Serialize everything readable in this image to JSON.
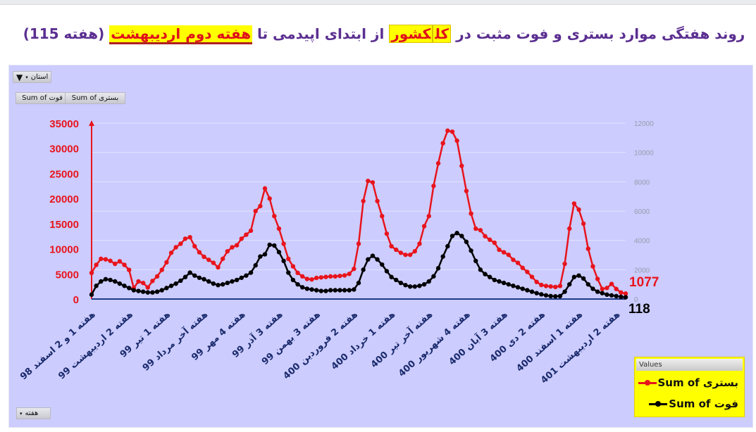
{
  "title": {
    "segments": [
      {
        "text": "روند هفتگی موارد بستری و فوت مثبت در ",
        "style": "plain"
      },
      {
        "text": "کل",
        "style": "highlight"
      },
      {
        "text": "کشور",
        "style": "highlight"
      },
      {
        "text": " از ابتدای اپیدمی تا ",
        "style": "plain"
      },
      {
        "text": "هفته دوم اردیبهشت",
        "style": "highlight-underline"
      },
      {
        "text": " (هفته 115)",
        "style": "plain"
      }
    ]
  },
  "controls": {
    "province_filter": "استان",
    "field_death": "Sum of فوت",
    "field_hosp": "Sum of بستری",
    "week_field": "هفته"
  },
  "legend": {
    "header": "Values",
    "items": [
      "Sum of بستری",
      "Sum of فوت"
    ]
  },
  "colors": {
    "hospitalized": "#e8141c",
    "deaths": "#000000",
    "background": "#ccccff",
    "left_axis": "#e8141c",
    "x_labels": "#1a2a6c",
    "title": "#5b2f91"
  },
  "chart_data": {
    "type": "line",
    "x_count": 115,
    "x_tick_labels": [
      "هفته 1 و 2 اسفند 98",
      "هفته 2 اردیبهشت 99",
      "هفته 1 تیر 99",
      "هفته آخر مرداد 99",
      "هفته 4 مهر 99",
      "هفته 3 آذر 99",
      "هفته 3 بهمن 99",
      "هفته 2 فروردین 400",
      "هفته 1 خرداد 400",
      "هفته آخر تیر 400",
      "هفته 4 شهریور 400",
      "هفته 3 آبان 400",
      "هفته 2 دی 400",
      "هفته 1 اسفند 400",
      "هفته 2 اردیبهشت 401"
    ],
    "x_tick_every": 8,
    "y_left": {
      "min": 0,
      "max": 35000,
      "step": 5000,
      "ticks": [
        "0",
        "5000",
        "10000",
        "15000",
        "20000",
        "25000",
        "30000",
        "35000"
      ]
    },
    "y_right": {
      "min": 0,
      "max": 12000,
      "step": 2000,
      "ticks": [
        "0",
        "2000",
        "4000",
        "6000",
        "8000",
        "10000",
        "12000"
      ]
    },
    "grid": true,
    "legend_position": "bottom-right",
    "series": [
      {
        "name": "Sum of بستری",
        "axis": "left",
        "color": "#e8141c",
        "values": [
          5200,
          6800,
          8000,
          7900,
          7600,
          7000,
          7500,
          6800,
          5800,
          2200,
          3500,
          3200,
          2300,
          3600,
          4500,
          5800,
          7300,
          9200,
          10300,
          11000,
          12000,
          12300,
          10500,
          9300,
          8400,
          7800,
          7200,
          6300,
          8000,
          9500,
          10300,
          10700,
          12000,
          12800,
          13600,
          17500,
          18500,
          22000,
          20000,
          16500,
          14000,
          11000,
          8000,
          6500,
          5200,
          4500,
          4000,
          3900,
          4200,
          4300,
          4400,
          4500,
          4500,
          4600,
          4700,
          5000,
          6000,
          11000,
          19500,
          23500,
          23200,
          19500,
          16500,
          13000,
          10500,
          9800,
          9200,
          8800,
          8800,
          9500,
          11000,
          14500,
          16500,
          22500,
          27000,
          31000,
          33500,
          33300,
          31500,
          26500,
          21500,
          17000,
          14000,
          13700,
          12500,
          11800,
          11200,
          9800,
          9300,
          8800,
          7800,
          7200,
          6200,
          5400,
          4400,
          3400,
          2800,
          2600,
          2500,
          2400,
          2600,
          7000,
          14000,
          19000,
          17800,
          15000,
          10000,
          6500,
          4000,
          2000,
          2200,
          3000,
          2000,
          1300,
          1077
        ]
      },
      {
        "name": "Sum of فوت",
        "axis": "right",
        "color": "#000000",
        "values": [
          300,
          900,
          1200,
          1350,
          1300,
          1200,
          1050,
          900,
          750,
          600,
          550,
          500,
          450,
          450,
          500,
          600,
          750,
          900,
          1050,
          1250,
          1500,
          1800,
          1600,
          1450,
          1350,
          1200,
          1050,
          950,
          1000,
          1100,
          1200,
          1300,
          1450,
          1600,
          1800,
          2300,
          2900,
          3050,
          3700,
          3650,
          3200,
          2600,
          1800,
          1300,
          1000,
          800,
          700,
          650,
          600,
          550,
          550,
          600,
          600,
          600,
          600,
          600,
          650,
          1100,
          2000,
          2700,
          2950,
          2700,
          2350,
          1900,
          1500,
          1300,
          1100,
          950,
          850,
          850,
          900,
          1000,
          1200,
          1550,
          2100,
          2900,
          3600,
          4300,
          4500,
          4300,
          3900,
          3300,
          2600,
          2000,
          1700,
          1500,
          1300,
          1200,
          1100,
          1000,
          900,
          800,
          700,
          600,
          500,
          400,
          320,
          250,
          200,
          180,
          200,
          500,
          1000,
          1500,
          1600,
          1400,
          1000,
          700,
          500,
          400,
          300,
          250,
          200,
          150,
          118
        ]
      }
    ],
    "annotations": [
      {
        "text": "1077",
        "series": "Sum of بستری",
        "color": "#e8141c"
      },
      {
        "text": "118",
        "series": "Sum of فوت",
        "color": "#000000"
      }
    ]
  }
}
